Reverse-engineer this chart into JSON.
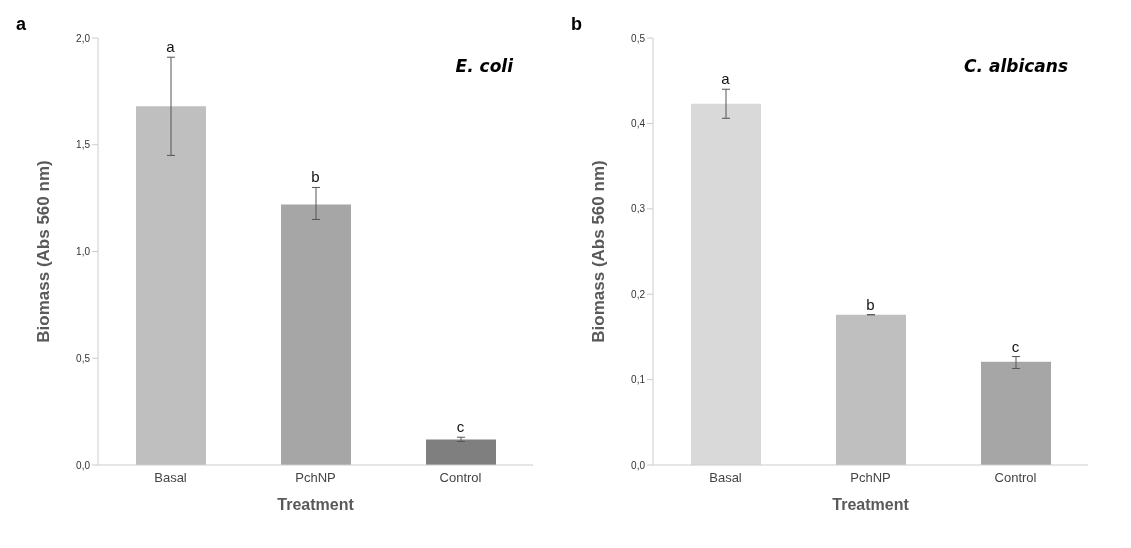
{
  "chart_data": [
    {
      "type": "bar",
      "title": "E. coli",
      "xlabel": "Treatment",
      "ylabel": "Biomass (Abs 560 nm)",
      "categories": [
        "Basal",
        "PchNP",
        "Control"
      ],
      "values": [
        1.68,
        1.22,
        0.12
      ],
      "colors": [
        "#bfbfbf",
        "#a6a6a6",
        "#7f7f7f"
      ],
      "errors": [
        [
          1.45,
          1.91
        ],
        [
          1.15,
          1.3
        ],
        [
          0.11,
          0.13
        ]
      ],
      "ylim": [
        0,
        2
      ],
      "yticks": [
        {
          "value": 0,
          "label": "0,0"
        },
        {
          "value": 0.5,
          "label": "0,5"
        },
        {
          "value": 1,
          "label": "1,0"
        },
        {
          "value": 1.5,
          "label": "1,5"
        },
        {
          "value": 2,
          "label": "2,0"
        }
      ],
      "grid": false,
      "legend": false,
      "annotations": [
        "a",
        {
          "text": "a",
          "x": "Basal",
          "y": 1.91
        },
        {
          "text": "b",
          "x": "PchNP",
          "y": 1.3
        },
        {
          "text": "c",
          "x": "Control",
          "y": 0.13
        }
      ]
    },
    {
      "type": "bar",
      "title": "C. albicans",
      "xlabel": "Treatment",
      "ylabel": "Biomass (Abs 560 nm)",
      "categories": [
        "Basal",
        "PchNP",
        "Control"
      ],
      "values": [
        0.423,
        0.176,
        0.121
      ],
      "colors": [
        "#d9d9d9",
        "#bfbfbf",
        "#a6a6a6"
      ],
      "errors": [
        [
          0.406,
          0.44
        ],
        null,
        [
          0.113,
          0.127
        ]
      ],
      "ylim": [
        0,
        0.5
      ],
      "yticks": [
        {
          "value": 0,
          "label": "0,0"
        },
        {
          "value": 0.1,
          "label": "0,1"
        },
        {
          "value": 0.2,
          "label": "0,2"
        },
        {
          "value": 0.3,
          "label": "0,3"
        },
        {
          "value": 0.4,
          "label": "0,4"
        },
        {
          "value": 0.5,
          "label": "0,5"
        }
      ],
      "grid": false,
      "legend": false,
      "annotations": [
        "b",
        {
          "text": "a",
          "x": "Basal",
          "y": 0.44
        },
        {
          "text": "b",
          "x": "PchNP",
          "y": 0.176
        },
        {
          "text": "c",
          "x": "Control",
          "y": 0.127
        }
      ]
    }
  ]
}
